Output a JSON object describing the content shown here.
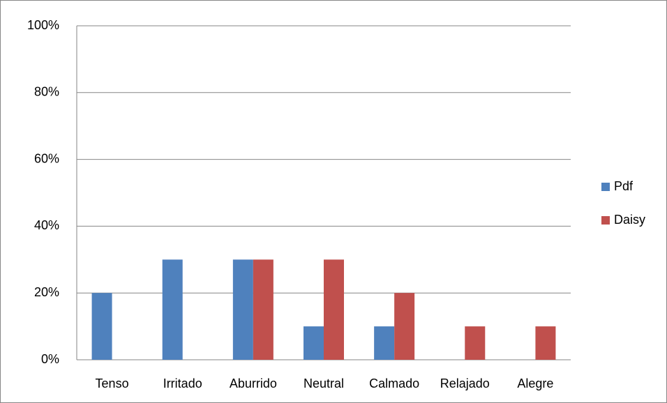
{
  "chart_data": {
    "type": "bar",
    "categories": [
      "Tenso",
      "Irritado",
      "Aburrido",
      "Neutral",
      "Calmado",
      "Relajado",
      "Alegre"
    ],
    "series": [
      {
        "name": "Pdf",
        "color": "#4f81bd",
        "values": [
          20,
          30,
          30,
          10,
          10,
          0,
          0
        ]
      },
      {
        "name": "Daisy",
        "color": "#c0504d",
        "values": [
          0,
          0,
          30,
          30,
          20,
          10,
          10
        ]
      }
    ],
    "ylim": [
      0,
      100
    ],
    "yticks": [
      {
        "value": 0,
        "label": "0%"
      },
      {
        "value": 20,
        "label": "20%"
      },
      {
        "value": 40,
        "label": "40%"
      },
      {
        "value": 60,
        "label": "60%"
      },
      {
        "value": 80,
        "label": "80%"
      },
      {
        "value": 100,
        "label": "100%"
      }
    ],
    "grid": true,
    "legend": "right"
  }
}
